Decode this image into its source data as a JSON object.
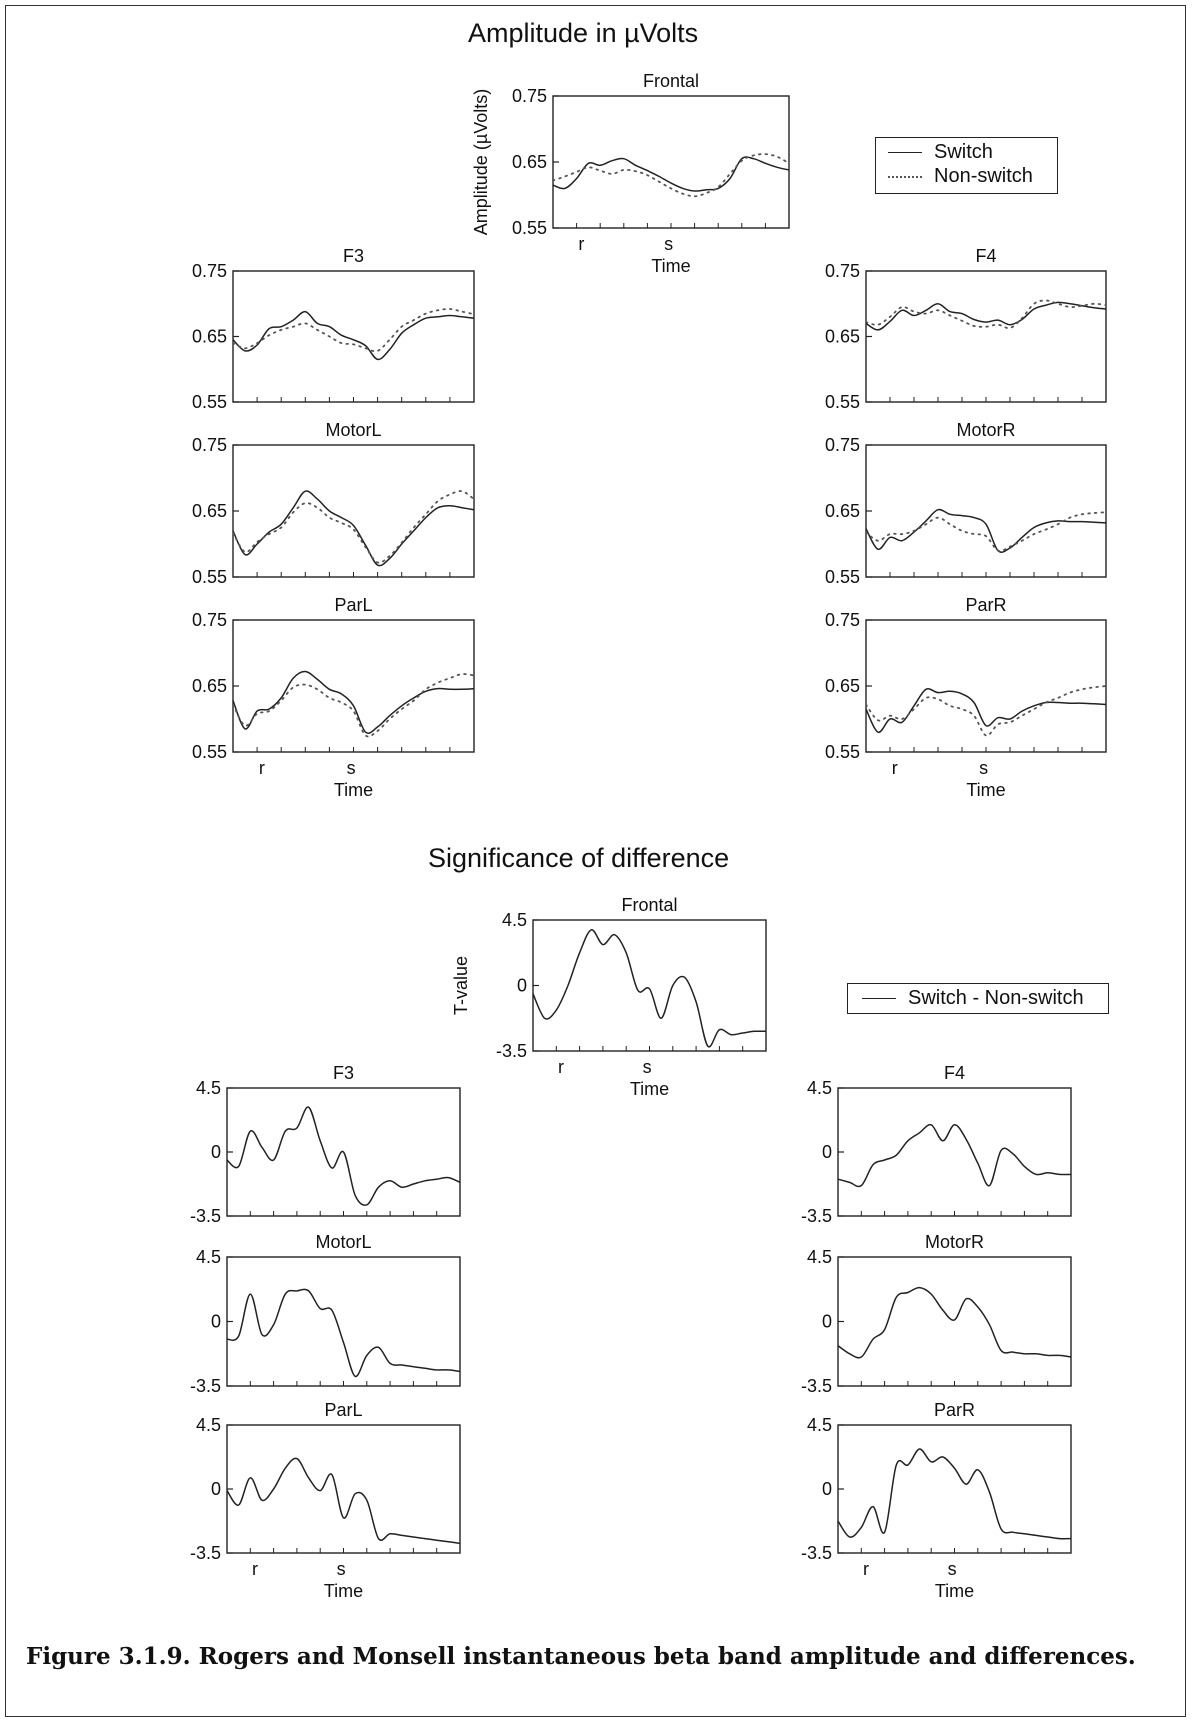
{
  "section_titles": {
    "amplitude": "Amplitude in µVolts",
    "significance": "Significance of difference"
  },
  "legend_amplitude": {
    "items": [
      {
        "label": "Switch",
        "style": "solid",
        "color": "#222222"
      },
      {
        "label": "Non-switch",
        "style": "dotted",
        "color": "#555555"
      }
    ]
  },
  "legend_difference": {
    "items": [
      {
        "label": "Switch - Non-switch",
        "style": "solid",
        "color": "#222222"
      }
    ]
  },
  "caption": "Figure 3.1.9. Rogers and Monsell instantaneous beta band amplitude and differences.",
  "chart_data": [
    {
      "id": "amp-frontal",
      "type": "line",
      "title": "Frontal",
      "ylabel": "Amplitude (µVolts)",
      "xlabel": "Time",
      "x_ticks": [
        "r",
        "s"
      ],
      "ylim": [
        0.55,
        0.75
      ],
      "y_ticks": [
        "0.75",
        "0.65",
        "0.55"
      ],
      "x": [
        0,
        1,
        2,
        3,
        4,
        5,
        6,
        7,
        8,
        9,
        10,
        11,
        12,
        13,
        14,
        15,
        16,
        17,
        18,
        19,
        20
      ],
      "series": [
        {
          "name": "Switch",
          "style": "solid",
          "values": [
            0.615,
            0.61,
            0.625,
            0.648,
            0.645,
            0.652,
            0.655,
            0.645,
            0.637,
            0.628,
            0.618,
            0.61,
            0.606,
            0.608,
            0.61,
            0.625,
            0.655,
            0.655,
            0.648,
            0.642,
            0.638
          ]
        },
        {
          "name": "Non-switch",
          "style": "dotted",
          "values": [
            0.622,
            0.628,
            0.635,
            0.642,
            0.637,
            0.632,
            0.638,
            0.636,
            0.63,
            0.62,
            0.61,
            0.602,
            0.598,
            0.603,
            0.612,
            0.632,
            0.652,
            0.66,
            0.662,
            0.658,
            0.648
          ]
        }
      ]
    },
    {
      "id": "amp-f3",
      "type": "line",
      "title": "F3",
      "xlabel": "",
      "x_ticks": [],
      "ylim": [
        0.55,
        0.75
      ],
      "y_ticks": [
        "0.75",
        "0.65",
        "0.55"
      ],
      "x": [
        0,
        1,
        2,
        3,
        4,
        5,
        6,
        7,
        8,
        9,
        10,
        11,
        12,
        13,
        14,
        15,
        16,
        17,
        18,
        19,
        20
      ],
      "series": [
        {
          "name": "Switch",
          "style": "solid",
          "values": [
            0.645,
            0.628,
            0.637,
            0.662,
            0.665,
            0.675,
            0.688,
            0.67,
            0.665,
            0.652,
            0.645,
            0.636,
            0.615,
            0.63,
            0.655,
            0.668,
            0.678,
            0.68,
            0.682,
            0.68,
            0.678
          ]
        },
        {
          "name": "Non-switch",
          "style": "dotted",
          "values": [
            0.64,
            0.632,
            0.64,
            0.652,
            0.66,
            0.665,
            0.67,
            0.66,
            0.65,
            0.64,
            0.638,
            0.632,
            0.628,
            0.645,
            0.665,
            0.675,
            0.685,
            0.69,
            0.692,
            0.688,
            0.684
          ]
        }
      ]
    },
    {
      "id": "amp-f4",
      "type": "line",
      "title": "F4",
      "xlabel": "",
      "x_ticks": [],
      "ylim": [
        0.55,
        0.75
      ],
      "y_ticks": [
        "0.75",
        "0.65",
        "0.55"
      ],
      "x": [
        0,
        1,
        2,
        3,
        4,
        5,
        6,
        7,
        8,
        9,
        10,
        11,
        12,
        13,
        14,
        15,
        16,
        17,
        18,
        19,
        20
      ],
      "series": [
        {
          "name": "Switch",
          "style": "solid",
          "values": [
            0.67,
            0.66,
            0.673,
            0.69,
            0.682,
            0.69,
            0.7,
            0.688,
            0.685,
            0.676,
            0.672,
            0.675,
            0.668,
            0.676,
            0.692,
            0.698,
            0.702,
            0.7,
            0.697,
            0.694,
            0.692
          ]
        },
        {
          "name": "Non-switch",
          "style": "dotted",
          "values": [
            0.672,
            0.668,
            0.68,
            0.695,
            0.688,
            0.685,
            0.69,
            0.682,
            0.674,
            0.666,
            0.665,
            0.668,
            0.663,
            0.678,
            0.7,
            0.705,
            0.7,
            0.695,
            0.697,
            0.7,
            0.698
          ]
        }
      ]
    },
    {
      "id": "amp-motorl",
      "type": "line",
      "title": "MotorL",
      "xlabel": "",
      "x_ticks": [],
      "ylim": [
        0.55,
        0.75
      ],
      "y_ticks": [
        "0.75",
        "0.65",
        "0.55"
      ],
      "x": [
        0,
        1,
        2,
        3,
        4,
        5,
        6,
        7,
        8,
        9,
        10,
        11,
        12,
        13,
        14,
        15,
        16,
        17,
        18,
        19,
        20
      ],
      "series": [
        {
          "name": "Switch",
          "style": "solid",
          "values": [
            0.62,
            0.584,
            0.6,
            0.618,
            0.63,
            0.655,
            0.68,
            0.668,
            0.65,
            0.64,
            0.628,
            0.598,
            0.568,
            0.578,
            0.6,
            0.62,
            0.64,
            0.655,
            0.658,
            0.655,
            0.652
          ]
        },
        {
          "name": "Non-switch",
          "style": "dotted",
          "values": [
            0.617,
            0.588,
            0.603,
            0.615,
            0.625,
            0.648,
            0.662,
            0.655,
            0.64,
            0.632,
            0.622,
            0.595,
            0.572,
            0.582,
            0.602,
            0.625,
            0.645,
            0.665,
            0.675,
            0.68,
            0.668
          ]
        }
      ]
    },
    {
      "id": "amp-motorr",
      "type": "line",
      "title": "MotorR",
      "xlabel": "",
      "x_ticks": [],
      "ylim": [
        0.55,
        0.75
      ],
      "y_ticks": [
        "0.75",
        "0.65",
        "0.55"
      ],
      "x": [
        0,
        1,
        2,
        3,
        4,
        5,
        6,
        7,
        8,
        9,
        10,
        11,
        12,
        13,
        14,
        15,
        16,
        17,
        18,
        19,
        20
      ],
      "series": [
        {
          "name": "Switch",
          "style": "solid",
          "values": [
            0.623,
            0.592,
            0.61,
            0.605,
            0.618,
            0.635,
            0.652,
            0.645,
            0.643,
            0.64,
            0.63,
            0.59,
            0.594,
            0.61,
            0.625,
            0.632,
            0.635,
            0.634,
            0.634,
            0.633,
            0.632
          ]
        },
        {
          "name": "Non-switch",
          "style": "dotted",
          "values": [
            0.618,
            0.605,
            0.615,
            0.615,
            0.62,
            0.63,
            0.64,
            0.63,
            0.62,
            0.615,
            0.612,
            0.59,
            0.596,
            0.605,
            0.615,
            0.622,
            0.63,
            0.64,
            0.645,
            0.647,
            0.648
          ]
        }
      ]
    },
    {
      "id": "amp-parl",
      "type": "line",
      "title": "ParL",
      "xlabel": "Time",
      "x_ticks": [
        "r",
        "s"
      ],
      "ylim": [
        0.55,
        0.75
      ],
      "y_ticks": [
        "0.75",
        "0.65",
        "0.55"
      ],
      "x": [
        0,
        1,
        2,
        3,
        4,
        5,
        6,
        7,
        8,
        9,
        10,
        11,
        12,
        13,
        14,
        15,
        16,
        17,
        18,
        19,
        20
      ],
      "series": [
        {
          "name": "Switch",
          "style": "solid",
          "values": [
            0.628,
            0.585,
            0.612,
            0.615,
            0.632,
            0.662,
            0.672,
            0.66,
            0.645,
            0.638,
            0.62,
            0.58,
            0.588,
            0.605,
            0.62,
            0.632,
            0.642,
            0.646,
            0.645,
            0.645,
            0.646
          ]
        },
        {
          "name": "Non-switch",
          "style": "dotted",
          "values": [
            0.622,
            0.59,
            0.608,
            0.612,
            0.628,
            0.648,
            0.652,
            0.645,
            0.632,
            0.625,
            0.612,
            0.575,
            0.582,
            0.6,
            0.615,
            0.628,
            0.645,
            0.655,
            0.662,
            0.668,
            0.666
          ]
        }
      ]
    },
    {
      "id": "amp-parr",
      "type": "line",
      "title": "ParR",
      "xlabel": "Time",
      "x_ticks": [
        "r",
        "s"
      ],
      "ylim": [
        0.55,
        0.75
      ],
      "y_ticks": [
        "0.75",
        "0.65",
        "0.55"
      ],
      "x": [
        0,
        1,
        2,
        3,
        4,
        5,
        6,
        7,
        8,
        9,
        10,
        11,
        12,
        13,
        14,
        15,
        16,
        17,
        18,
        19,
        20
      ],
      "series": [
        {
          "name": "Switch",
          "style": "solid",
          "values": [
            0.615,
            0.58,
            0.6,
            0.595,
            0.62,
            0.645,
            0.64,
            0.642,
            0.638,
            0.625,
            0.59,
            0.602,
            0.6,
            0.612,
            0.62,
            0.625,
            0.625,
            0.624,
            0.624,
            0.623,
            0.622
          ]
        },
        {
          "name": "Non-switch",
          "style": "dotted",
          "values": [
            0.622,
            0.598,
            0.605,
            0.6,
            0.615,
            0.632,
            0.63,
            0.62,
            0.615,
            0.605,
            0.575,
            0.592,
            0.595,
            0.605,
            0.615,
            0.625,
            0.632,
            0.64,
            0.645,
            0.648,
            0.65
          ]
        }
      ]
    },
    {
      "id": "diff-frontal",
      "type": "line",
      "title": "Frontal",
      "ylabel": "T-value",
      "xlabel": "Time",
      "x_ticks": [
        "r",
        "s"
      ],
      "ylim": [
        -3.5,
        4.5
      ],
      "y_ticks": [
        "4.5",
        "0",
        "-3.5"
      ],
      "x": [
        0,
        1,
        2,
        3,
        4,
        5,
        6,
        7,
        8,
        9,
        10,
        11,
        12,
        13,
        14,
        15,
        16,
        17,
        18,
        19,
        20
      ],
      "series": [
        {
          "name": "Switch - Non-switch",
          "style": "solid",
          "values": [
            0,
            -1.5,
            -1,
            0.5,
            2.5,
            3.9,
            3,
            3.6,
            2.5,
            0.2,
            0.3,
            -1.5,
            0.5,
            1,
            -0.5,
            -3.2,
            -2.2,
            -2.5,
            -2.4,
            -2.3,
            -2.3
          ]
        }
      ]
    },
    {
      "id": "diff-f3",
      "type": "line",
      "title": "F3",
      "xlabel": "",
      "x_ticks": [],
      "ylim": [
        -3.5,
        4.5
      ],
      "y_ticks": [
        "4.5",
        "0",
        "-3.5"
      ],
      "x": [
        0,
        1,
        2,
        3,
        4,
        5,
        6,
        7,
        8,
        9,
        10,
        11,
        12,
        13,
        14,
        15,
        16,
        17,
        18,
        19,
        20
      ],
      "series": [
        {
          "name": "Switch - Non-switch",
          "style": "solid",
          "values": [
            0,
            -0.4,
            1.8,
            0.8,
            0,
            1.8,
            2,
            3.3,
            1.2,
            -0.5,
            0.5,
            -2.2,
            -2.8,
            -1.7,
            -1.3,
            -1.7,
            -1.5,
            -1.3,
            -1.2,
            -1.1,
            -1.4
          ]
        }
      ]
    },
    {
      "id": "diff-f4",
      "type": "line",
      "title": "F4",
      "xlabel": "",
      "x_ticks": [],
      "ylim": [
        -3.5,
        4.5
      ],
      "y_ticks": [
        "4.5",
        "0",
        "-3.5"
      ],
      "x": [
        0,
        1,
        2,
        3,
        4,
        5,
        6,
        7,
        8,
        9,
        10,
        11,
        12,
        13,
        14,
        15,
        16,
        17,
        18,
        19,
        20
      ],
      "series": [
        {
          "name": "Switch - Non-switch",
          "style": "solid",
          "values": [
            -1.2,
            -1.4,
            -1.6,
            -0.3,
            0,
            0.3,
            1.2,
            1.7,
            2.2,
            1.2,
            2.2,
            1.3,
            -0.2,
            -1.6,
            0.6,
            0.4,
            -0.4,
            -0.9,
            -0.8,
            -0.9,
            -0.9
          ]
        }
      ]
    },
    {
      "id": "diff-motorl",
      "type": "line",
      "title": "MotorL",
      "xlabel": "",
      "x_ticks": [],
      "ylim": [
        -3.5,
        4.5
      ],
      "y_ticks": [
        "4.5",
        "0",
        "-3.5"
      ],
      "x": [
        0,
        1,
        2,
        3,
        4,
        5,
        6,
        7,
        8,
        9,
        10,
        11,
        12,
        13,
        14,
        15,
        16,
        17,
        18,
        19,
        20
      ],
      "series": [
        {
          "name": "Switch - Non-switch",
          "style": "solid",
          "values": [
            -0.6,
            -0.4,
            2.2,
            -0.3,
            0.3,
            2.2,
            2.4,
            2.4,
            1.3,
            1.2,
            -0.8,
            -2.9,
            -1.6,
            -1.1,
            -2.1,
            -2.2,
            -2.3,
            -2.4,
            -2.5,
            -2.5,
            -2.6
          ]
        }
      ]
    },
    {
      "id": "diff-motorr",
      "type": "line",
      "title": "MotorR",
      "xlabel": "",
      "x_ticks": [],
      "ylim": [
        -3.5,
        4.5
      ],
      "y_ticks": [
        "4.5",
        "0",
        "-3.5"
      ],
      "x": [
        0,
        1,
        2,
        3,
        4,
        5,
        6,
        7,
        8,
        9,
        10,
        11,
        12,
        13,
        14,
        15,
        16,
        17,
        18,
        19,
        20
      ],
      "series": [
        {
          "name": "Switch - Non-switch",
          "style": "solid",
          "values": [
            -1,
            -1.5,
            -1.7,
            -0.6,
            0,
            2,
            2.3,
            2.6,
            2.2,
            1.2,
            0.6,
            1.9,
            1.4,
            0.3,
            -1.3,
            -1.4,
            -1.5,
            -1.5,
            -1.6,
            -1.6,
            -1.7
          ]
        }
      ]
    },
    {
      "id": "diff-parl",
      "type": "line",
      "title": "ParL",
      "xlabel": "Time",
      "x_ticks": [
        "r",
        "s"
      ],
      "ylim": [
        -3.5,
        4.5
      ],
      "y_ticks": [
        "4.5",
        "0",
        "-3.5"
      ],
      "x": [
        0,
        1,
        2,
        3,
        4,
        5,
        6,
        7,
        8,
        9,
        10,
        11,
        12,
        13,
        14,
        15,
        16,
        17,
        18,
        19,
        20
      ],
      "series": [
        {
          "name": "Switch - Non-switch",
          "style": "solid",
          "values": [
            0.4,
            -0.5,
            1.2,
            -0.2,
            0.5,
            1.8,
            2.4,
            1.2,
            0.4,
            1.4,
            -1.3,
            0.2,
            -0.2,
            -2.6,
            -2.3,
            -2.4,
            -2.5,
            -2.6,
            -2.7,
            -2.8,
            -2.9
          ]
        }
      ]
    },
    {
      "id": "diff-parr",
      "type": "line",
      "title": "ParR",
      "xlabel": "Time",
      "x_ticks": [
        "r",
        "s"
      ],
      "ylim": [
        -3.5,
        4.5
      ],
      "y_ticks": [
        "4.5",
        "0",
        "-3.5"
      ],
      "x": [
        0,
        1,
        2,
        3,
        4,
        5,
        6,
        7,
        8,
        9,
        10,
        11,
        12,
        13,
        14,
        15,
        16,
        17,
        18,
        19,
        20
      ],
      "series": [
        {
          "name": "Switch - Non-switch",
          "style": "solid",
          "values": [
            -1.5,
            -2.5,
            -1.9,
            -0.6,
            -2.2,
            2,
            2,
            3,
            2.2,
            2.5,
            1.8,
            0.8,
            1.7,
            0.3,
            -2,
            -2.2,
            -2.3,
            -2.4,
            -2.5,
            -2.6,
            -2.6
          ]
        }
      ]
    }
  ]
}
